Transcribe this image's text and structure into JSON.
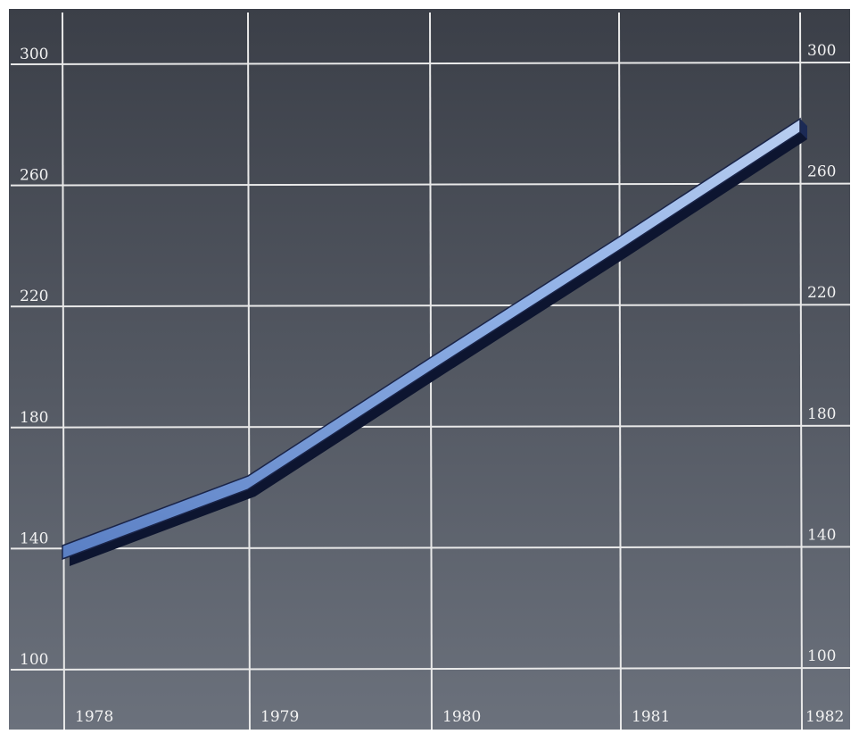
{
  "chart_data": {
    "type": "line",
    "title": "",
    "xlabel": "",
    "ylabel": "",
    "categories": [
      "1978",
      "1979",
      "1980",
      "1981",
      "1982"
    ],
    "x": [
      1978,
      1979,
      1980,
      1981,
      1982
    ],
    "series": [
      {
        "values": [
          141,
          164,
          203,
          243,
          282
        ]
      }
    ],
    "ylim": [
      100,
      300
    ],
    "yticks_left": [
      "300",
      "260",
      "220",
      "180",
      "140",
      "100"
    ],
    "yticks_right": [
      "300",
      "260",
      "220",
      "180",
      "140",
      "100"
    ],
    "grid": true,
    "legend": "none",
    "colors": {
      "background_top": "#3b3f48",
      "background_bottom": "#6b717c",
      "grid": "#e9e9e9",
      "line_fill": "#7d9fd8",
      "line_dark": "#0d1530",
      "text": "#f2f2f2"
    }
  }
}
